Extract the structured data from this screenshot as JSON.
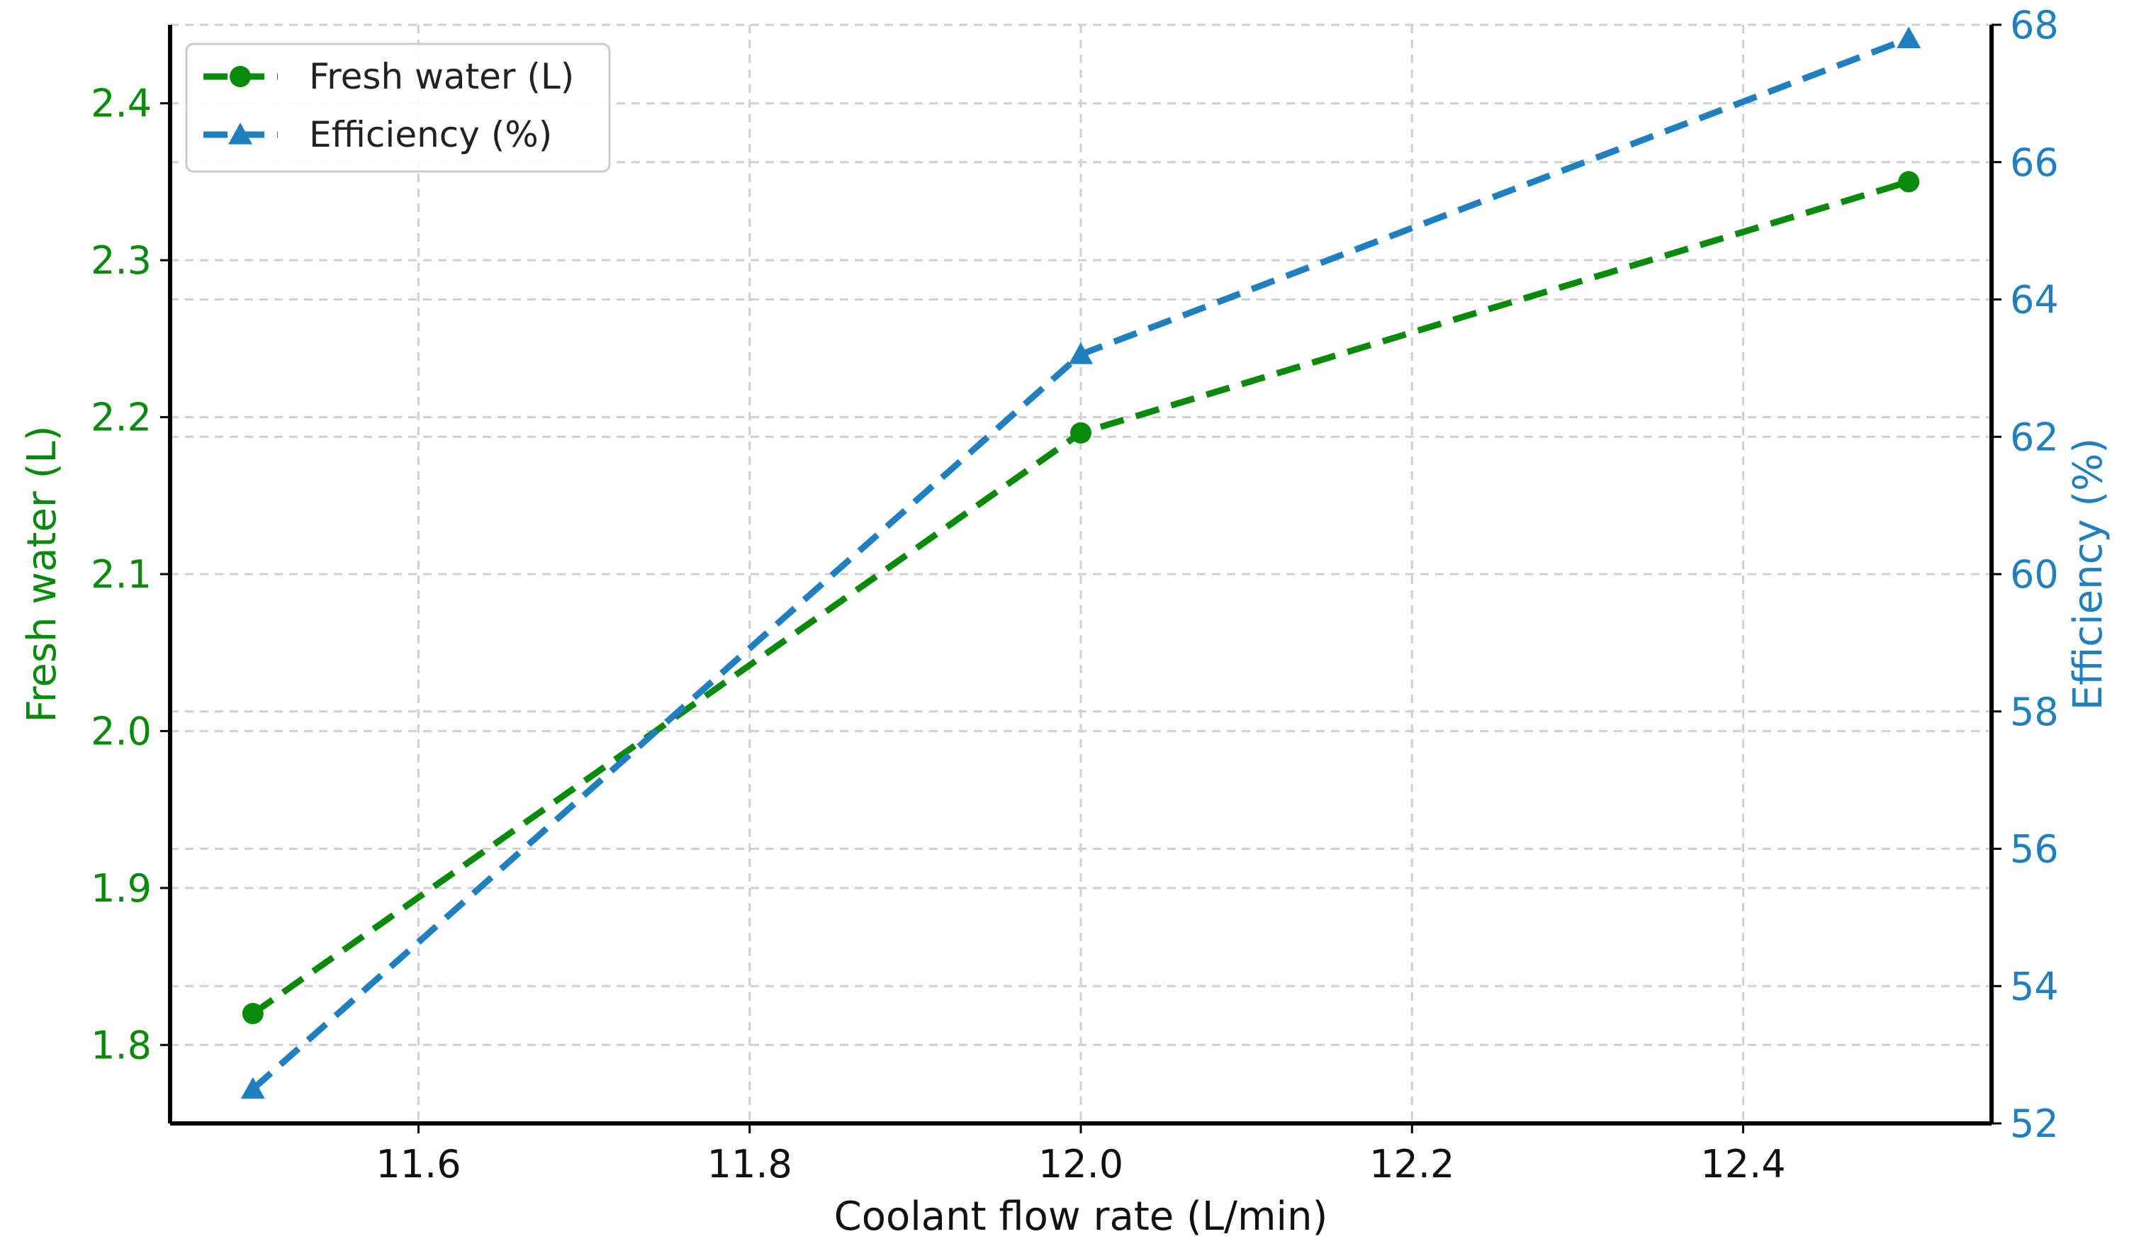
{
  "chart_data": {
    "type": "line",
    "title": "",
    "xlabel": "Coolant flow rate (L/min)",
    "ylabel_left": "Fresh water (L)",
    "ylabel_right": "Efficiency (%)",
    "x": [
      11.5,
      12.0,
      12.5
    ],
    "xlim": [
      11.45,
      12.55
    ],
    "ylim_left": [
      1.75,
      2.45
    ],
    "ylim_right": [
      52,
      68
    ],
    "x_ticks": [
      "11.6",
      "11.8",
      "12.0",
      "12.2",
      "12.4"
    ],
    "y_left_ticks": [
      "1.8",
      "1.9",
      "2.0",
      "2.1",
      "2.2",
      "2.3",
      "2.4"
    ],
    "y_right_ticks": [
      "52",
      "54",
      "56",
      "58",
      "60",
      "62",
      "64",
      "66",
      "68"
    ],
    "grid": true,
    "legend_position": "top-left",
    "series": [
      {
        "name": "Fresh water (L)",
        "axis": "left",
        "values": [
          1.82,
          2.19,
          2.35
        ],
        "color": "#0a8a0a",
        "marker": "circle",
        "line_style": "dashed"
      },
      {
        "name": "Efficiency (%)",
        "axis": "right",
        "values": [
          52.5,
          63.2,
          67.8
        ],
        "color": "#1f7fbf",
        "marker": "triangle",
        "line_style": "dashed"
      }
    ]
  }
}
